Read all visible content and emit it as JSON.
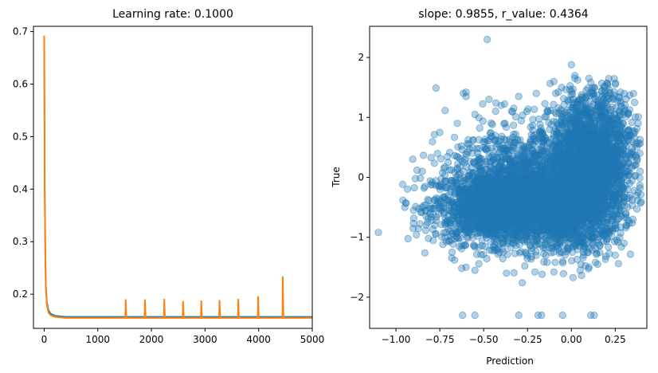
{
  "chart_data": [
    {
      "type": "line",
      "title": "Learning rate: 0.1000",
      "xlabel": "",
      "ylabel": "",
      "xlim": [
        -200,
        5000
      ],
      "ylim": [
        0.135,
        0.71
      ],
      "xticks": [
        0,
        1000,
        2000,
        3000,
        4000,
        5000
      ],
      "xtick_labels": [
        "0",
        "1000",
        "2000",
        "3000",
        "4000",
        "5000"
      ],
      "yticks": [
        0.2,
        0.3,
        0.4,
        0.5,
        0.6,
        0.7
      ],
      "ytick_labels": [
        "0.2",
        "0.3",
        "0.4",
        "0.5",
        "0.6",
        "0.7"
      ],
      "grid": false,
      "series": [
        {
          "color": "#1f77b4",
          "baseline": 0.157,
          "x": [
            0,
            5,
            10,
            20,
            30,
            50,
            80,
            120,
            200,
            400,
            1000,
            2000,
            3000,
            4000,
            5000
          ],
          "y": [
            0.692,
            0.55,
            0.4,
            0.28,
            0.22,
            0.185,
            0.17,
            0.163,
            0.159,
            0.157,
            0.157,
            0.157,
            0.157,
            0.157,
            0.157
          ]
        },
        {
          "color": "#ff7f0e",
          "baseline": 0.155,
          "x": [
            0,
            5,
            10,
            20,
            30,
            50,
            80,
            120,
            200,
            400,
            1000,
            2000,
            3000,
            4000,
            5000
          ],
          "y": [
            0.692,
            0.56,
            0.41,
            0.29,
            0.215,
            0.18,
            0.165,
            0.16,
            0.157,
            0.155,
            0.155,
            0.155,
            0.155,
            0.155,
            0.155
          ],
          "spikes": [
            {
              "x": 1520,
              "y": 0.189
            },
            {
              "x": 1880,
              "y": 0.189
            },
            {
              "x": 2240,
              "y": 0.19
            },
            {
              "x": 2590,
              "y": 0.186
            },
            {
              "x": 2930,
              "y": 0.187
            },
            {
              "x": 3270,
              "y": 0.188
            },
            {
              "x": 3620,
              "y": 0.19
            },
            {
              "x": 3990,
              "y": 0.195
            },
            {
              "x": 4450,
              "y": 0.233
            }
          ]
        }
      ]
    },
    {
      "type": "scatter",
      "title": "slope: 0.9855, r_value: 0.4364",
      "xlabel": "Prediction",
      "ylabel": "True",
      "xlim": [
        -1.15,
        0.43
      ],
      "ylim": [
        -2.52,
        2.52
      ],
      "xticks": [
        -1.0,
        -0.75,
        -0.5,
        -0.25,
        0.0,
        0.25
      ],
      "xtick_labels": [
        "−1.00",
        "−0.75",
        "−0.50",
        "−0.25",
        "0.00",
        "0.25"
      ],
      "yticks": [
        -2,
        -1,
        0,
        1,
        2
      ],
      "ytick_labels": [
        "−2",
        "−1",
        "0",
        "1",
        "2"
      ],
      "grid": false,
      "color": "#1f77b4",
      "alpha": 0.35,
      "points": [
        [
          -1.1,
          -0.92
        ],
        [
          -0.48,
          2.3
        ],
        [
          -0.6,
          1.42
        ],
        [
          -0.6,
          1.35
        ],
        [
          -0.47,
          1.3
        ],
        [
          -0.8,
          0.33
        ],
        [
          -0.85,
          0.1
        ],
        [
          -0.62,
          -2.3
        ],
        [
          -0.55,
          -2.3
        ],
        [
          -0.3,
          -2.3
        ],
        [
          -0.19,
          -2.3
        ],
        [
          -0.17,
          -2.3
        ],
        [
          -0.05,
          -2.3
        ],
        [
          0.11,
          -2.3
        ],
        [
          0.13,
          -2.3
        ],
        [
          -0.28,
          -1.76
        ],
        [
          -0.37,
          -1.6
        ],
        [
          -0.55,
          -1.55
        ],
        [
          -0.6,
          -1.5
        ],
        [
          0.0,
          1.88
        ],
        [
          0.02,
          1.7
        ],
        [
          -0.1,
          1.6
        ],
        [
          0.1,
          1.65
        ],
        [
          0.25,
          1.55
        ],
        [
          0.36,
          1.25
        ],
        [
          0.38,
          0.9
        ],
        [
          0.39,
          0.4
        ],
        [
          0.38,
          -0.25
        ],
        [
          0.35,
          -0.7
        ],
        [
          0.3,
          -1.1
        ],
        [
          0.25,
          -1.3
        ],
        [
          0.1,
          -1.5
        ],
        [
          -0.05,
          -1.4
        ],
        [
          -0.2,
          -1.3
        ],
        [
          -0.9,
          -0.55
        ],
        [
          -0.95,
          -0.5
        ],
        [
          -0.88,
          0.12
        ],
        [
          -0.75,
          0.75
        ],
        [
          -0.65,
          0.9
        ],
        [
          -0.55,
          1.05
        ],
        [
          -0.4,
          1.2
        ],
        [
          -0.3,
          1.35
        ],
        [
          -0.2,
          1.4
        ],
        [
          -0.72,
          -1.0
        ],
        [
          -0.68,
          -1.25
        ],
        [
          0.05,
          -1.55
        ],
        [
          0.15,
          -1.45
        ],
        [
          -0.1,
          -1.58
        ],
        [
          0.2,
          1.35
        ],
        [
          0.3,
          1.15
        ]
      ],
      "clouds": [
        {
          "cx": -0.45,
          "cy": -0.5,
          "sx": 0.17,
          "sy": 0.3,
          "n": 1600
        },
        {
          "cx": -0.18,
          "cy": -0.45,
          "sx": 0.14,
          "sy": 0.38,
          "n": 900
        },
        {
          "cx": 0.12,
          "cy": 0.35,
          "sx": 0.12,
          "sy": 0.55,
          "n": 1800
        },
        {
          "cx": 0.05,
          "cy": -0.35,
          "sx": 0.12,
          "sy": 0.45,
          "n": 1100
        },
        {
          "cx": -0.3,
          "cy": 0.15,
          "sx": 0.2,
          "sy": 0.42,
          "n": 700
        }
      ]
    }
  ]
}
